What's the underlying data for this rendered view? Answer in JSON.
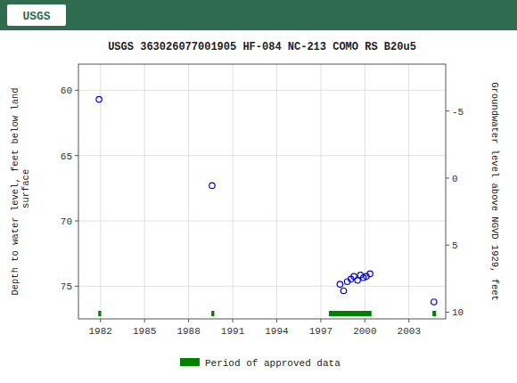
{
  "chart_data": {
    "type": "scatter",
    "title": "USGS 363026077001905 HF-084 NC-213 COMO RS B20u5",
    "annotations": [
      "USGS"
    ],
    "y_label": "Depth to water level, feet below land\n surface",
    "y2_label": "Groundwater level above NGVD 1929, feet",
    "xlim": [
      1980.5,
      2005.5
    ],
    "xticks": [
      1982,
      1985,
      1988,
      1991,
      1994,
      1997,
      2000,
      2003
    ],
    "ylim": [
      77.5,
      58
    ],
    "yticks": [
      60,
      65,
      70,
      75
    ],
    "y2lim": [
      10.5,
      -8.5
    ],
    "y2ticks": [
      10,
      5,
      0,
      -5
    ],
    "grid": true,
    "legend": "bottom",
    "series": [
      {
        "type": "scatter",
        "color": "#0000cc",
        "marker": "open-circle",
        "x": [
          1981.9,
          1989.6,
          1998.3,
          1998.55,
          1998.8,
          1999.05,
          1999.25,
          1999.5,
          1999.7,
          1999.9,
          2000.1,
          2000.35,
          2004.7
        ],
        "values": [
          60.7,
          67.3,
          74.85,
          75.35,
          74.65,
          74.45,
          74.25,
          74.55,
          74.15,
          74.35,
          74.25,
          74.05,
          76.2
        ]
      },
      {
        "type": "span",
        "name": "Period of approved data",
        "color": "#008000",
        "x": [
          1981.85,
          1989.55,
          1997.55,
          2004.6
        ],
        "x_end": [
          1982.05,
          1989.75,
          2000.45,
          2004.85
        ]
      }
    ]
  }
}
